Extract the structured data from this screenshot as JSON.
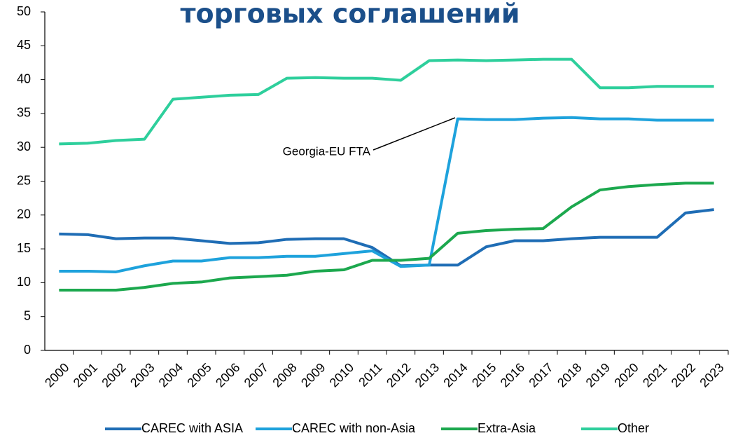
{
  "chart_data": {
    "type": "line",
    "title": "торговых соглашений",
    "categories": [
      "2000",
      "2001",
      "2002",
      "2003",
      "2004",
      "2005",
      "2006",
      "2007",
      "2008",
      "2009",
      "2010",
      "2011",
      "2012",
      "2013",
      "2014",
      "2015",
      "2016",
      "2017",
      "2018",
      "2019",
      "2020",
      "2021",
      "2022",
      "2023"
    ],
    "series": [
      {
        "name": "CAREC with ASIA",
        "color": "#1f6db5",
        "values": [
          17.2,
          17.1,
          16.5,
          16.6,
          16.6,
          16.2,
          15.8,
          15.9,
          16.4,
          16.5,
          16.5,
          15.2,
          12.5,
          12.6,
          12.6,
          15.3,
          16.2,
          16.2,
          16.5,
          16.7,
          16.7,
          16.7,
          20.3,
          20.8
        ]
      },
      {
        "name": "CAREC with non-Asia",
        "color": "#1ea2dc",
        "values": [
          11.7,
          11.7,
          11.6,
          12.5,
          13.2,
          13.2,
          13.7,
          13.7,
          13.9,
          13.9,
          14.3,
          14.7,
          12.4,
          12.6,
          34.2,
          34.1,
          34.1,
          34.3,
          34.4,
          34.2,
          34.2,
          34.0,
          34.0,
          34.0
        ]
      },
      {
        "name": "Extra-Asia",
        "color": "#1ca84e",
        "values": [
          8.9,
          8.9,
          8.9,
          9.3,
          9.9,
          10.1,
          10.7,
          10.9,
          11.1,
          11.7,
          11.9,
          13.3,
          13.3,
          13.6,
          17.3,
          17.7,
          17.9,
          18.0,
          21.2,
          23.7,
          24.2,
          24.5,
          24.7,
          24.7
        ]
      },
      {
        "name": "Other",
        "color": "#2ecf9c",
        "values": [
          30.5,
          30.6,
          31.0,
          31.2,
          37.1,
          37.4,
          37.7,
          37.8,
          40.2,
          40.3,
          40.2,
          40.2,
          39.9,
          42.8,
          42.9,
          42.8,
          42.9,
          43.0,
          43.0,
          38.8,
          38.8,
          39.0,
          39.0,
          39.0
        ]
      }
    ],
    "annotation": "Georgia-EU FTA",
    "ylim": [
      0,
      50
    ],
    "yticks": [
      0,
      5,
      10,
      15,
      20,
      25,
      30,
      35,
      40,
      45,
      50
    ],
    "grid": false,
    "legend": "bottom"
  }
}
